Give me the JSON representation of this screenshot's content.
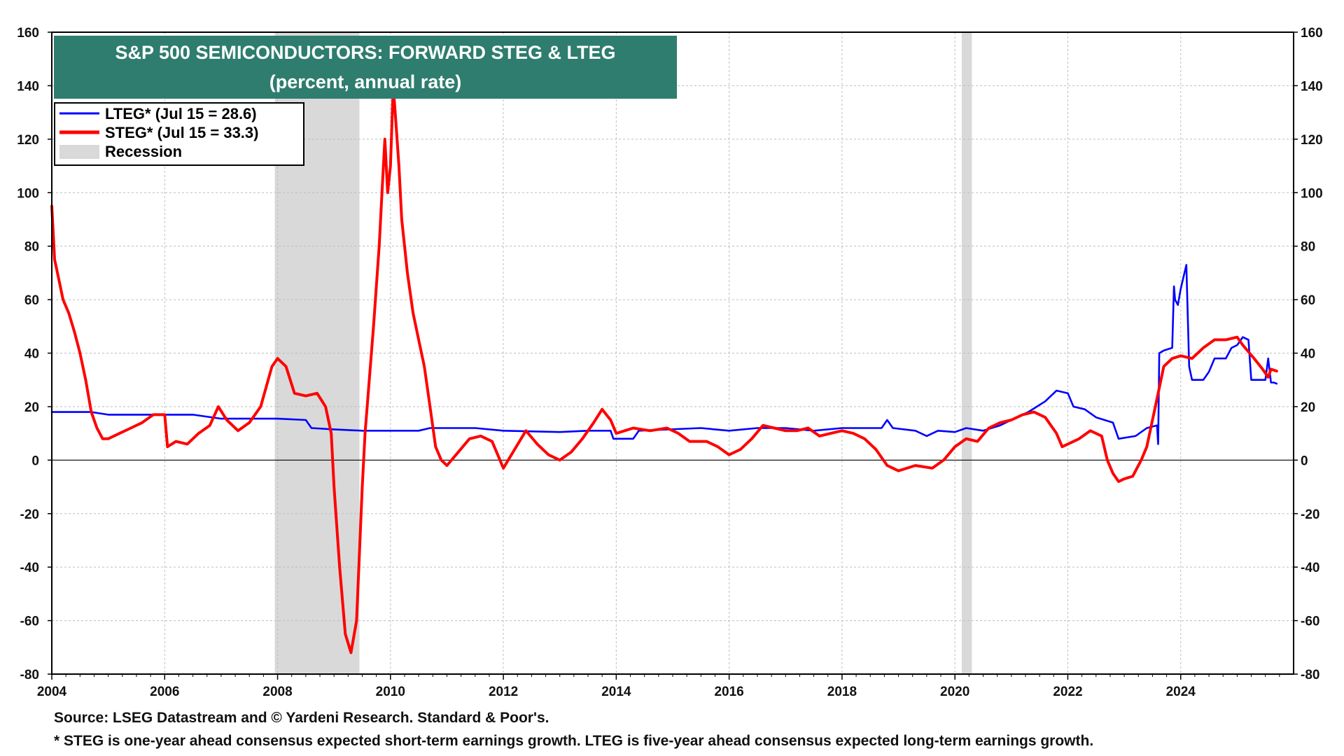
{
  "chart_data": {
    "type": "line",
    "title": "S&P 500 SEMICONDUCTORS: FORWARD STEG & LTEG",
    "subtitle": "(percent, annual rate)",
    "xlim": [
      2004,
      2026.0
    ],
    "ylim": [
      -80,
      160
    ],
    "y_ticks": [
      -80,
      -60,
      -40,
      -20,
      0,
      20,
      40,
      60,
      80,
      100,
      120,
      140,
      160
    ],
    "y_tick_labels": [
      "-80",
      "-60",
      "-40",
      "-20",
      "0",
      "20",
      "40",
      "60",
      "80",
      "100",
      "120",
      "140",
      "160"
    ],
    "x_ticks": [
      2004,
      2006,
      2008,
      2010,
      2012,
      2014,
      2016,
      2018,
      2020,
      2022,
      2024
    ],
    "x_tick_labels": [
      "2004",
      "2006",
      "2008",
      "2010",
      "2012",
      "2014",
      "2016",
      "2018",
      "2020",
      "2022",
      "2024"
    ],
    "grid": true,
    "legend_position": "top-left",
    "recessions": [
      [
        2007.95,
        2009.45
      ],
      [
        2020.12,
        2020.3
      ]
    ],
    "series": [
      {
        "name": "LTEG* (Jul 15 = 28.6)",
        "color": "#0000ff",
        "points": [
          [
            2004.0,
            18
          ],
          [
            2004.7,
            18
          ],
          [
            2005.0,
            17
          ],
          [
            2006.5,
            17
          ],
          [
            2007.0,
            15.5
          ],
          [
            2008.0,
            15.5
          ],
          [
            2008.5,
            15
          ],
          [
            2008.6,
            12
          ],
          [
            2009.0,
            11.5
          ],
          [
            2009.5,
            11
          ],
          [
            2010.5,
            11
          ],
          [
            2010.7,
            12
          ],
          [
            2011.5,
            12
          ],
          [
            2012.0,
            11
          ],
          [
            2013.0,
            10.5
          ],
          [
            2013.5,
            11
          ],
          [
            2013.9,
            11
          ],
          [
            2013.95,
            8
          ],
          [
            2014.3,
            8
          ],
          [
            2014.4,
            11
          ],
          [
            2015.5,
            12
          ],
          [
            2016.0,
            11
          ],
          [
            2016.5,
            12
          ],
          [
            2017.0,
            12
          ],
          [
            2017.5,
            11
          ],
          [
            2018.0,
            12
          ],
          [
            2018.7,
            12
          ],
          [
            2018.8,
            15
          ],
          [
            2018.9,
            12
          ],
          [
            2019.3,
            11
          ],
          [
            2019.5,
            9
          ],
          [
            2019.7,
            11
          ],
          [
            2020.0,
            10.5
          ],
          [
            2020.2,
            12
          ],
          [
            2020.5,
            11
          ],
          [
            2020.8,
            13
          ],
          [
            2021.0,
            15
          ],
          [
            2021.3,
            18
          ],
          [
            2021.6,
            22
          ],
          [
            2021.8,
            26
          ],
          [
            2022.0,
            25
          ],
          [
            2022.1,
            20
          ],
          [
            2022.3,
            19
          ],
          [
            2022.5,
            16
          ],
          [
            2022.8,
            14
          ],
          [
            2022.9,
            8
          ],
          [
            2023.2,
            9
          ],
          [
            2023.4,
            12
          ],
          [
            2023.58,
            13
          ],
          [
            2023.6,
            6
          ],
          [
            2023.62,
            40
          ],
          [
            2023.7,
            41
          ],
          [
            2023.85,
            42
          ],
          [
            2023.88,
            65
          ],
          [
            2023.9,
            60
          ],
          [
            2023.95,
            58
          ],
          [
            2024.0,
            64
          ],
          [
            2024.1,
            73
          ],
          [
            2024.15,
            35
          ],
          [
            2024.2,
            30
          ],
          [
            2024.4,
            30
          ],
          [
            2024.5,
            33
          ],
          [
            2024.6,
            38
          ],
          [
            2024.8,
            38
          ],
          [
            2024.9,
            42
          ],
          [
            2025.0,
            43
          ],
          [
            2025.1,
            46
          ],
          [
            2025.2,
            45
          ],
          [
            2025.25,
            30
          ],
          [
            2025.4,
            30
          ],
          [
            2025.5,
            30
          ],
          [
            2025.55,
            38
          ],
          [
            2025.6,
            29
          ],
          [
            2025.65,
            29
          ],
          [
            2025.7,
            28.6
          ]
        ]
      },
      {
        "name": "STEG* (Jul 15 = 33.3)",
        "color": "#ff0000",
        "points": [
          [
            2004.0,
            95
          ],
          [
            2004.05,
            75
          ],
          [
            2004.1,
            70
          ],
          [
            2004.2,
            60
          ],
          [
            2004.3,
            55
          ],
          [
            2004.4,
            48
          ],
          [
            2004.5,
            40
          ],
          [
            2004.6,
            30
          ],
          [
            2004.7,
            18
          ],
          [
            2004.8,
            12
          ],
          [
            2004.9,
            8
          ],
          [
            2005.0,
            8
          ],
          [
            2005.2,
            10
          ],
          [
            2005.4,
            12
          ],
          [
            2005.6,
            14
          ],
          [
            2005.8,
            17
          ],
          [
            2006.0,
            17
          ],
          [
            2006.05,
            5
          ],
          [
            2006.2,
            7
          ],
          [
            2006.4,
            6
          ],
          [
            2006.6,
            10
          ],
          [
            2006.8,
            13
          ],
          [
            2006.95,
            20
          ],
          [
            2007.1,
            15
          ],
          [
            2007.3,
            11
          ],
          [
            2007.5,
            14
          ],
          [
            2007.7,
            20
          ],
          [
            2007.9,
            35
          ],
          [
            2008.0,
            38
          ],
          [
            2008.15,
            35
          ],
          [
            2008.3,
            25
          ],
          [
            2008.5,
            24
          ],
          [
            2008.7,
            25
          ],
          [
            2008.85,
            20
          ],
          [
            2008.95,
            10
          ],
          [
            2009.0,
            -10
          ],
          [
            2009.1,
            -40
          ],
          [
            2009.2,
            -65
          ],
          [
            2009.3,
            -72
          ],
          [
            2009.4,
            -60
          ],
          [
            2009.5,
            -10
          ],
          [
            2009.55,
            10
          ],
          [
            2009.7,
            50
          ],
          [
            2009.8,
            80
          ],
          [
            2009.85,
            100
          ],
          [
            2009.9,
            120
          ],
          [
            2009.95,
            100
          ],
          [
            2010.0,
            110
          ],
          [
            2010.05,
            140
          ],
          [
            2010.1,
            125
          ],
          [
            2010.15,
            110
          ],
          [
            2010.2,
            90
          ],
          [
            2010.3,
            70
          ],
          [
            2010.4,
            55
          ],
          [
            2010.5,
            45
          ],
          [
            2010.6,
            35
          ],
          [
            2010.7,
            20
          ],
          [
            2010.8,
            5
          ],
          [
            2010.9,
            0
          ],
          [
            2011.0,
            -2
          ],
          [
            2011.2,
            3
          ],
          [
            2011.4,
            8
          ],
          [
            2011.6,
            9
          ],
          [
            2011.8,
            7
          ],
          [
            2012.0,
            -3
          ],
          [
            2012.2,
            4
          ],
          [
            2012.4,
            11
          ],
          [
            2012.6,
            6
          ],
          [
            2012.8,
            2
          ],
          [
            2013.0,
            0
          ],
          [
            2013.2,
            3
          ],
          [
            2013.4,
            8
          ],
          [
            2013.6,
            14
          ],
          [
            2013.75,
            19
          ],
          [
            2013.9,
            15
          ],
          [
            2014.0,
            10
          ],
          [
            2014.3,
            12
          ],
          [
            2014.6,
            11
          ],
          [
            2014.9,
            12
          ],
          [
            2015.1,
            10
          ],
          [
            2015.3,
            7
          ],
          [
            2015.6,
            7
          ],
          [
            2015.8,
            5
          ],
          [
            2016.0,
            2
          ],
          [
            2016.2,
            4
          ],
          [
            2016.4,
            8
          ],
          [
            2016.6,
            13
          ],
          [
            2016.8,
            12
          ],
          [
            2017.0,
            11
          ],
          [
            2017.2,
            11
          ],
          [
            2017.4,
            12
          ],
          [
            2017.6,
            9
          ],
          [
            2017.8,
            10
          ],
          [
            2018.0,
            11
          ],
          [
            2018.2,
            10
          ],
          [
            2018.4,
            8
          ],
          [
            2018.6,
            4
          ],
          [
            2018.8,
            -2
          ],
          [
            2019.0,
            -4
          ],
          [
            2019.3,
            -2
          ],
          [
            2019.6,
            -3
          ],
          [
            2019.8,
            0
          ],
          [
            2020.0,
            5
          ],
          [
            2020.2,
            8
          ],
          [
            2020.4,
            7
          ],
          [
            2020.6,
            12
          ],
          [
            2020.8,
            14
          ],
          [
            2021.0,
            15
          ],
          [
            2021.2,
            17
          ],
          [
            2021.4,
            18
          ],
          [
            2021.6,
            16
          ],
          [
            2021.8,
            10
          ],
          [
            2021.9,
            5
          ],
          [
            2022.0,
            6
          ],
          [
            2022.2,
            8
          ],
          [
            2022.4,
            11
          ],
          [
            2022.6,
            9
          ],
          [
            2022.7,
            0
          ],
          [
            2022.8,
            -5
          ],
          [
            2022.9,
            -8
          ],
          [
            2023.0,
            -7
          ],
          [
            2023.15,
            -6
          ],
          [
            2023.3,
            0
          ],
          [
            2023.4,
            5
          ],
          [
            2023.5,
            15
          ],
          [
            2023.6,
            25
          ],
          [
            2023.7,
            35
          ],
          [
            2023.85,
            38
          ],
          [
            2024.0,
            39
          ],
          [
            2024.2,
            38
          ],
          [
            2024.4,
            42
          ],
          [
            2024.6,
            45
          ],
          [
            2024.8,
            45
          ],
          [
            2025.0,
            46
          ],
          [
            2025.1,
            43
          ],
          [
            2025.3,
            38
          ],
          [
            2025.45,
            34
          ],
          [
            2025.55,
            31
          ],
          [
            2025.6,
            34
          ],
          [
            2025.7,
            33.3
          ]
        ]
      }
    ],
    "legend": [
      {
        "label": "LTEG* (Jul 15 = 28.6)",
        "color": "#0000ff",
        "kind": "line"
      },
      {
        "label": "STEG* (Jul 15 = 33.3)",
        "color": "#ff0000",
        "kind": "line"
      },
      {
        "label": "Recession",
        "color": "#d9d9d9",
        "kind": "box"
      }
    ]
  },
  "colors": {
    "title_bg": "#2e7d6e",
    "recession": "#d9d9d9",
    "grid": "#bdbdbd"
  },
  "footer": {
    "source": "Source: LSEG Datastream and © Yardeni Research. Standard & Poor's.",
    "note": "* STEG is one-year ahead consensus expected short-term earnings growth. LTEG is five-year ahead consensus expected long-term earnings growth."
  }
}
